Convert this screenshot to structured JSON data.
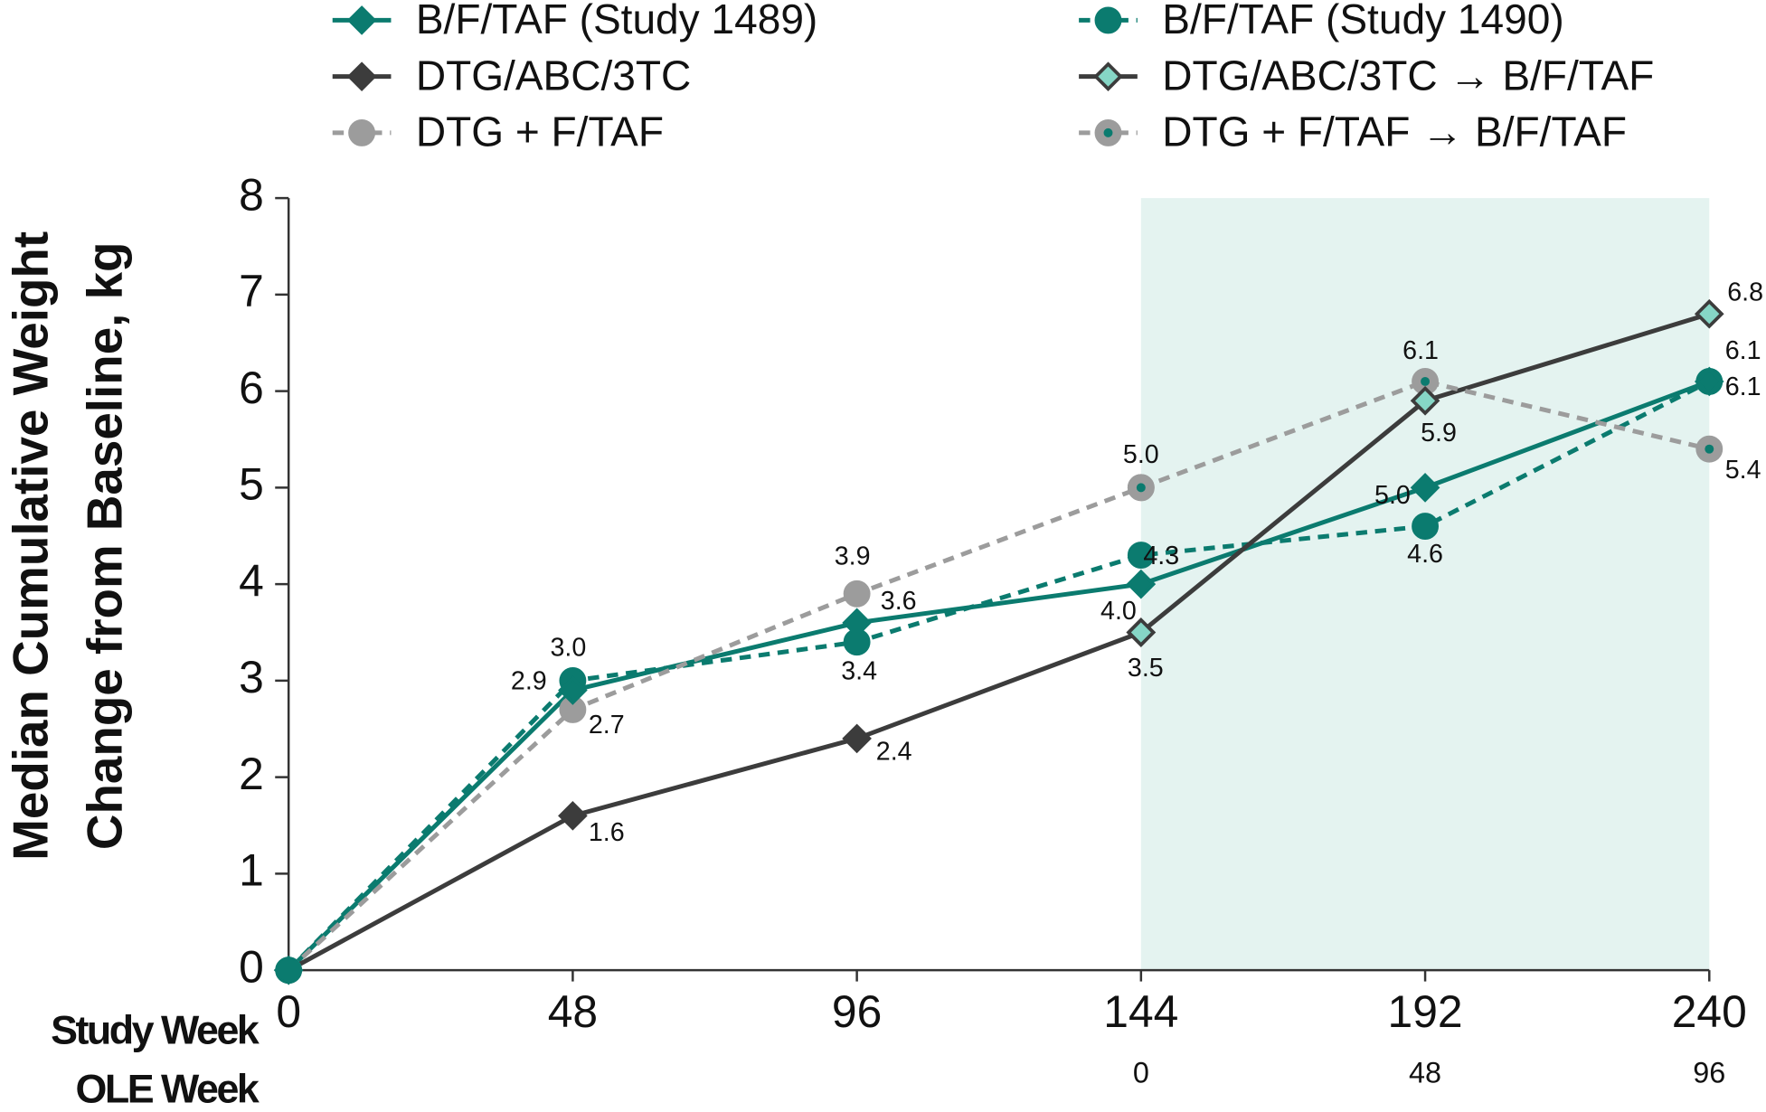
{
  "chart_data": {
    "type": "line",
    "y_title": [
      "Median Cumulative Weight",
      "Change from Baseline, kg"
    ],
    "x_row_labels": [
      "Study Week",
      "OLE Week"
    ],
    "x": [
      0,
      48,
      96,
      144,
      192,
      240
    ],
    "xlim": [
      0,
      240
    ],
    "xticks": [
      0,
      48,
      96,
      144,
      192,
      240
    ],
    "ole_ticks": [
      {
        "value": 144,
        "label": "0"
      },
      {
        "value": 192,
        "label": "48"
      },
      {
        "value": 240,
        "label": "96"
      }
    ],
    "ylim": [
      0,
      8
    ],
    "yticks": [
      0,
      1,
      2,
      3,
      4,
      5,
      6,
      7,
      8
    ],
    "shaded_region": [
      144,
      240
    ],
    "shade_color": "#e4f3f0",
    "series": [
      {
        "name": "B/F/TAF (Study 1489)",
        "color": "#0b7b6f",
        "dash": false,
        "marker": "diamond",
        "marker_fill": "#0b7b6f",
        "values": [
          0,
          2.9,
          3.6,
          4.0,
          5.0,
          6.1
        ],
        "value_labels": [
          null,
          "2.9",
          "3.6",
          "4.0",
          "5.0",
          "6.1"
        ]
      },
      {
        "name": "B/F/TAF (Study 1490)",
        "color": "#0b7b6f",
        "dash": true,
        "marker": "circle",
        "marker_fill": "#0b7b6f",
        "values": [
          0,
          3.0,
          3.4,
          4.3,
          4.6,
          6.1
        ],
        "value_labels": [
          null,
          "3.0",
          "3.4",
          "4.3",
          "4.6",
          "6.1"
        ]
      },
      {
        "name": "DTG/ABC/3TC",
        "color": "#3c3c3c",
        "dash": false,
        "marker": "diamond",
        "marker_fill": "#3c3c3c",
        "values": [
          0,
          1.6,
          2.4,
          3.5,
          null,
          null
        ],
        "value_labels": [
          null,
          "1.6",
          "2.4",
          "3.5",
          null,
          null
        ]
      },
      {
        "name": "DTG/ABC/3TC → B/F/TAF",
        "color": "#3c3c3c",
        "dash": false,
        "marker": "diamond",
        "marker_fill": "#86d6c6",
        "values": [
          null,
          null,
          null,
          3.5,
          5.9,
          6.8
        ],
        "value_labels": [
          null,
          null,
          null,
          null,
          "5.9",
          "6.8"
        ]
      },
      {
        "name": "DTG + F/TAF",
        "color": "#9c9c9c",
        "dash": true,
        "marker": "circle",
        "marker_fill": "#9c9c9c",
        "values": [
          0,
          2.7,
          3.9,
          5.0,
          null,
          null
        ],
        "value_labels": [
          null,
          "2.7",
          "3.9",
          "5.0",
          null,
          null
        ]
      },
      {
        "name": "DTG + F/TAF → B/F/TAF",
        "color": "#9c9c9c",
        "dash": true,
        "marker": "circle",
        "marker_fill": "#9c9c9c",
        "marker_center": "#0b7b6f",
        "values": [
          null,
          null,
          null,
          5.0,
          6.1,
          5.4
        ],
        "value_labels": [
          null,
          null,
          null,
          null,
          "6.1",
          "5.4"
        ]
      }
    ]
  }
}
